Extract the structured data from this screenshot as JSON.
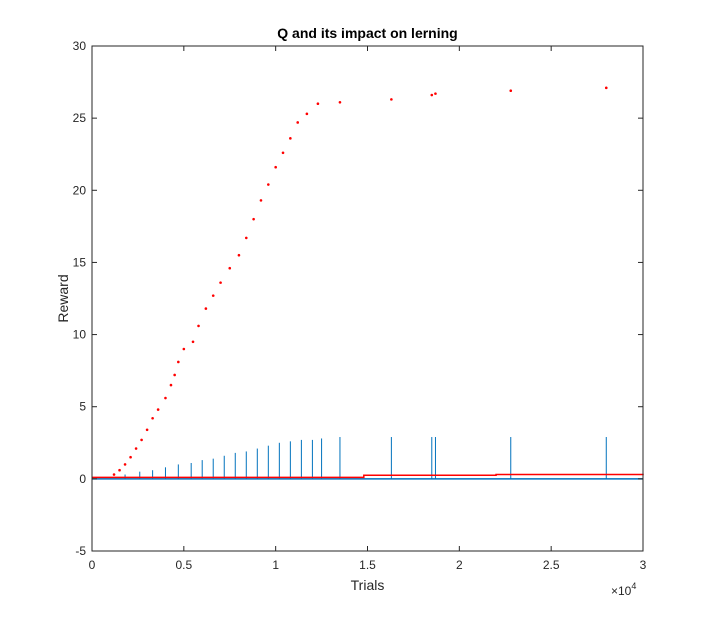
{
  "chart_data": {
    "type": "scatter",
    "title": "Q and its impact on lerning",
    "xlabel": "Trials",
    "ylabel": "Reward",
    "xlim": [
      0,
      30000
    ],
    "ylim": [
      -5,
      30
    ],
    "xticks": [
      0,
      5000,
      10000,
      15000,
      20000,
      25000,
      30000
    ],
    "xtick_labels": [
      "0",
      "0.5",
      "1",
      "1.5",
      "2",
      "2.5",
      "3"
    ],
    "x_exponent_label": "×10",
    "x_exponent_power": "4",
    "yticks": [
      -5,
      0,
      5,
      10,
      15,
      20,
      25,
      30
    ],
    "ytick_labels": [
      "-5",
      "0",
      "5",
      "10",
      "15",
      "20",
      "25",
      "30"
    ],
    "grid": false,
    "box": true,
    "series": [
      {
        "style": "dots",
        "color": "#ff0000",
        "points": [
          [
            1200,
            0.3
          ],
          [
            1500,
            0.6
          ],
          [
            1800,
            1.0
          ],
          [
            2100,
            1.5
          ],
          [
            2400,
            2.1
          ],
          [
            2700,
            2.7
          ],
          [
            3000,
            3.4
          ],
          [
            3300,
            4.2
          ],
          [
            3600,
            4.8
          ],
          [
            4000,
            5.6
          ],
          [
            4300,
            6.5
          ],
          [
            4500,
            7.2
          ],
          [
            4700,
            8.1
          ],
          [
            5000,
            9.0
          ],
          [
            5500,
            9.5
          ],
          [
            5800,
            10.6
          ],
          [
            6200,
            11.8
          ],
          [
            6600,
            12.7
          ],
          [
            7000,
            13.6
          ],
          [
            7500,
            14.6
          ],
          [
            8000,
            15.5
          ],
          [
            8400,
            16.7
          ],
          [
            8800,
            18.0
          ],
          [
            9200,
            19.3
          ],
          [
            9600,
            20.4
          ],
          [
            10000,
            21.6
          ],
          [
            10400,
            22.6
          ],
          [
            10800,
            23.6
          ],
          [
            11200,
            24.7
          ],
          [
            11700,
            25.3
          ],
          [
            12300,
            26.0
          ],
          [
            13500,
            26.1
          ],
          [
            16300,
            26.3
          ],
          [
            18500,
            26.6
          ],
          [
            18700,
            26.7
          ],
          [
            22800,
            26.9
          ],
          [
            28000,
            27.1
          ]
        ]
      },
      {
        "style": "stems",
        "color": "#0072bd",
        "points": [
          [
            1800,
            0.3
          ],
          [
            2600,
            0.5
          ],
          [
            3300,
            0.6
          ],
          [
            4000,
            0.8
          ],
          [
            4700,
            1.0
          ],
          [
            5400,
            1.1
          ],
          [
            6000,
            1.3
          ],
          [
            6600,
            1.4
          ],
          [
            7200,
            1.6
          ],
          [
            7800,
            1.8
          ],
          [
            8400,
            1.9
          ],
          [
            9000,
            2.1
          ],
          [
            9600,
            2.3
          ],
          [
            10200,
            2.5
          ],
          [
            10800,
            2.6
          ],
          [
            11400,
            2.7
          ],
          [
            12000,
            2.7
          ],
          [
            12500,
            2.8
          ],
          [
            13500,
            2.9
          ],
          [
            16300,
            2.9
          ],
          [
            18500,
            2.9
          ],
          [
            18700,
            2.9
          ],
          [
            22800,
            2.9
          ],
          [
            28000,
            2.9
          ]
        ]
      },
      {
        "style": "steps",
        "color": "#ff0000",
        "points": [
          [
            0,
            0.1
          ],
          [
            6000,
            0.1
          ],
          [
            12300,
            0.1
          ],
          [
            14800,
            0.25
          ],
          [
            22000,
            0.3
          ],
          [
            30000,
            0.35
          ]
        ]
      }
    ]
  }
}
